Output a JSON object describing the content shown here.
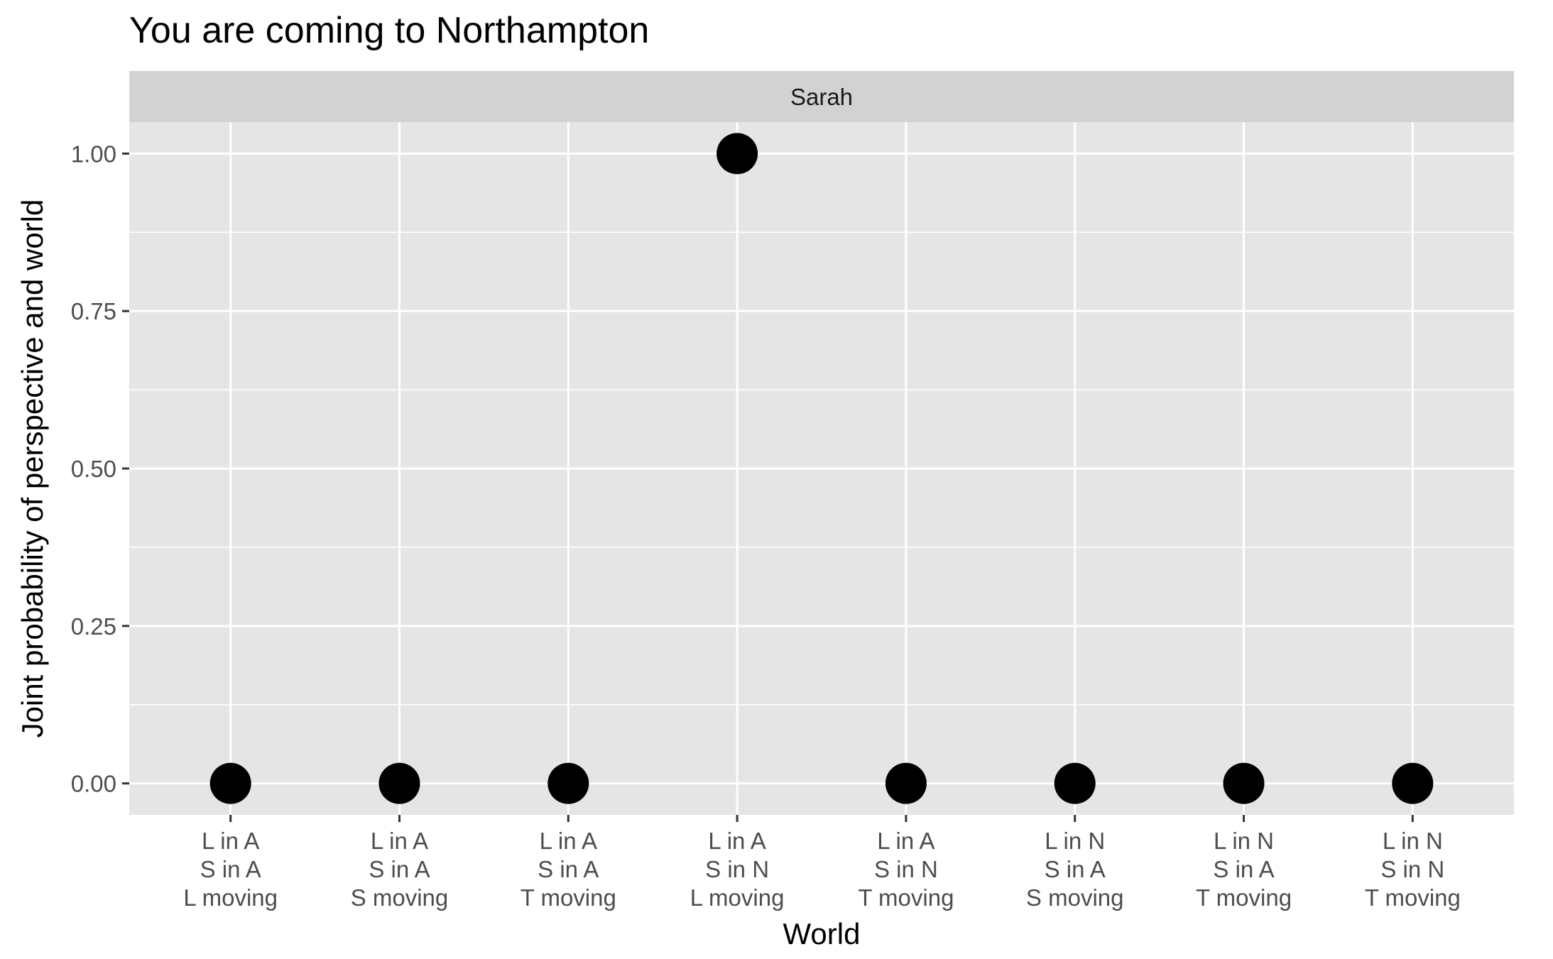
{
  "chart_data": {
    "type": "scatter",
    "title": "You are coming to Northampton",
    "facet_label": "Sarah",
    "xlabel": "World",
    "ylabel": "Joint probability of perspective and world",
    "ylim": [
      -0.05,
      1.05
    ],
    "yticks": [
      0.0,
      0.25,
      0.5,
      0.75,
      1.0
    ],
    "ytick_labels": [
      "0.00",
      "0.25",
      "0.50",
      "0.75",
      "1.00"
    ],
    "grid": true,
    "categories": [
      [
        "L in A",
        "S in A",
        "L moving"
      ],
      [
        "L in A",
        "S in A",
        "S moving"
      ],
      [
        "L in A",
        "S in A",
        "T moving"
      ],
      [
        "L in A",
        "S in N",
        "L moving"
      ],
      [
        "L in A",
        "S in N",
        "T moving"
      ],
      [
        "L in N",
        "S in A",
        "S moving"
      ],
      [
        "L in N",
        "S in A",
        "T moving"
      ],
      [
        "L in N",
        "S in N",
        "T moving"
      ]
    ],
    "values": [
      0,
      0,
      0,
      1,
      0,
      0,
      0,
      0
    ],
    "colors": {
      "panel": "#e5e5e5",
      "strip": "#d2d2d2",
      "grid": "#ffffff",
      "point": "#000000",
      "tick": "#333333"
    }
  }
}
